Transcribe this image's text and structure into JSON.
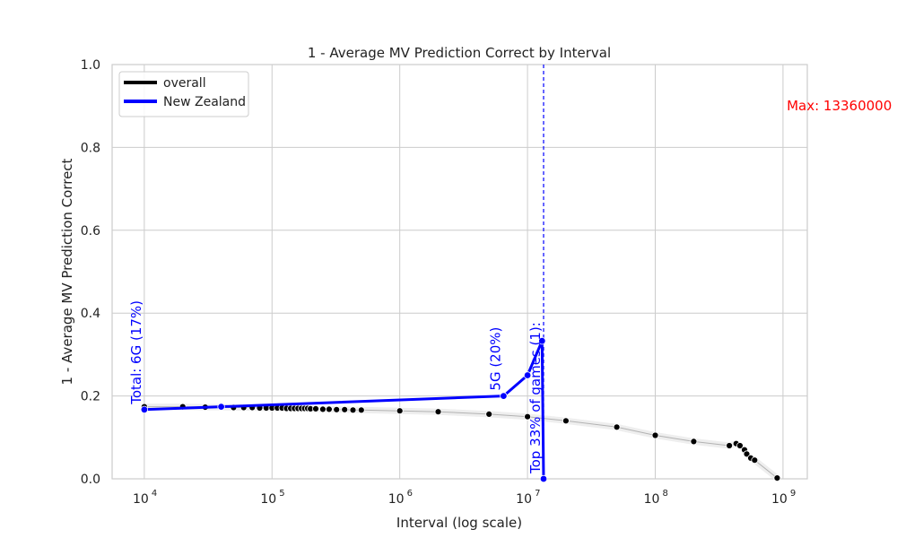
{
  "chart_data": {
    "type": "line",
    "title": "1 - Average MV Prediction Correct by Interval",
    "xlabel": "Interval (log scale)",
    "ylabel": "1 - Average MV Prediction Correct",
    "xscale": "log",
    "xlim": [
      5600,
      1550000000
    ],
    "ylim": [
      0,
      1.0
    ],
    "grid": true,
    "legend_position": "top-left",
    "x_ticks": [
      {
        "base": "10",
        "exp": "4",
        "value": 10000
      },
      {
        "base": "10",
        "exp": "5",
        "value": 100000
      },
      {
        "base": "10",
        "exp": "6",
        "value": 1000000
      },
      {
        "base": "10",
        "exp": "7",
        "value": 10000000
      },
      {
        "base": "10",
        "exp": "8",
        "value": 100000000
      },
      {
        "base": "10",
        "exp": "9",
        "value": 1000000000
      }
    ],
    "y_ticks": [
      "0.0",
      "0.2",
      "0.4",
      "0.6",
      "0.8",
      "1.0"
    ],
    "series": [
      {
        "name": "overall",
        "color": "#000000",
        "x": [
          10000,
          20000,
          30000,
          40000,
          50000,
          60000,
          70000,
          80000,
          90000,
          100000,
          110000,
          120000,
          130000,
          140000,
          150000,
          160000,
          170000,
          180000,
          190000,
          200000,
          220000,
          250000,
          280000,
          320000,
          370000,
          430000,
          500000,
          1000000,
          2000000,
          5000000,
          10000000,
          20000000,
          50000000,
          100000000,
          200000000,
          380000000,
          430000000,
          460000000,
          500000000,
          520000000,
          560000000,
          600000000,
          900000000
        ],
        "y": [
          0.174,
          0.174,
          0.173,
          0.173,
          0.172,
          0.172,
          0.172,
          0.171,
          0.171,
          0.171,
          0.171,
          0.171,
          0.17,
          0.17,
          0.17,
          0.17,
          0.17,
          0.17,
          0.17,
          0.169,
          0.169,
          0.168,
          0.168,
          0.167,
          0.167,
          0.166,
          0.166,
          0.164,
          0.162,
          0.156,
          0.15,
          0.14,
          0.125,
          0.105,
          0.09,
          0.08,
          0.085,
          0.08,
          0.07,
          0.06,
          0.05,
          0.045,
          0.002
        ]
      },
      {
        "name": "New Zealand",
        "color": "#0000ff",
        "x": [
          10000,
          40000,
          6500000,
          10000000,
          13000000,
          13360000
        ],
        "y": [
          0.167,
          0.174,
          0.2,
          0.25,
          0.333,
          0.0
        ]
      }
    ],
    "annotations": [
      {
        "text": "Total: 6G (17%)",
        "x": 10000,
        "y": 0.167,
        "color": "#0000ff",
        "rotation": -90
      },
      {
        "text": "5G (20%)",
        "x": 6500000,
        "y": 0.2,
        "color": "#0000ff",
        "rotation": -90
      },
      {
        "text": "Top 33% of games (1):",
        "x": 13360000,
        "y": 0.0,
        "color": "#0000ff",
        "rotation": -90
      },
      {
        "text": "Max: 13360000",
        "x": 1300000000,
        "y": 0.9,
        "color": "#ff0000",
        "rotation": 0
      }
    ],
    "vline": {
      "x": 13360000,
      "color": "#0000ff",
      "style": "dashed"
    }
  }
}
